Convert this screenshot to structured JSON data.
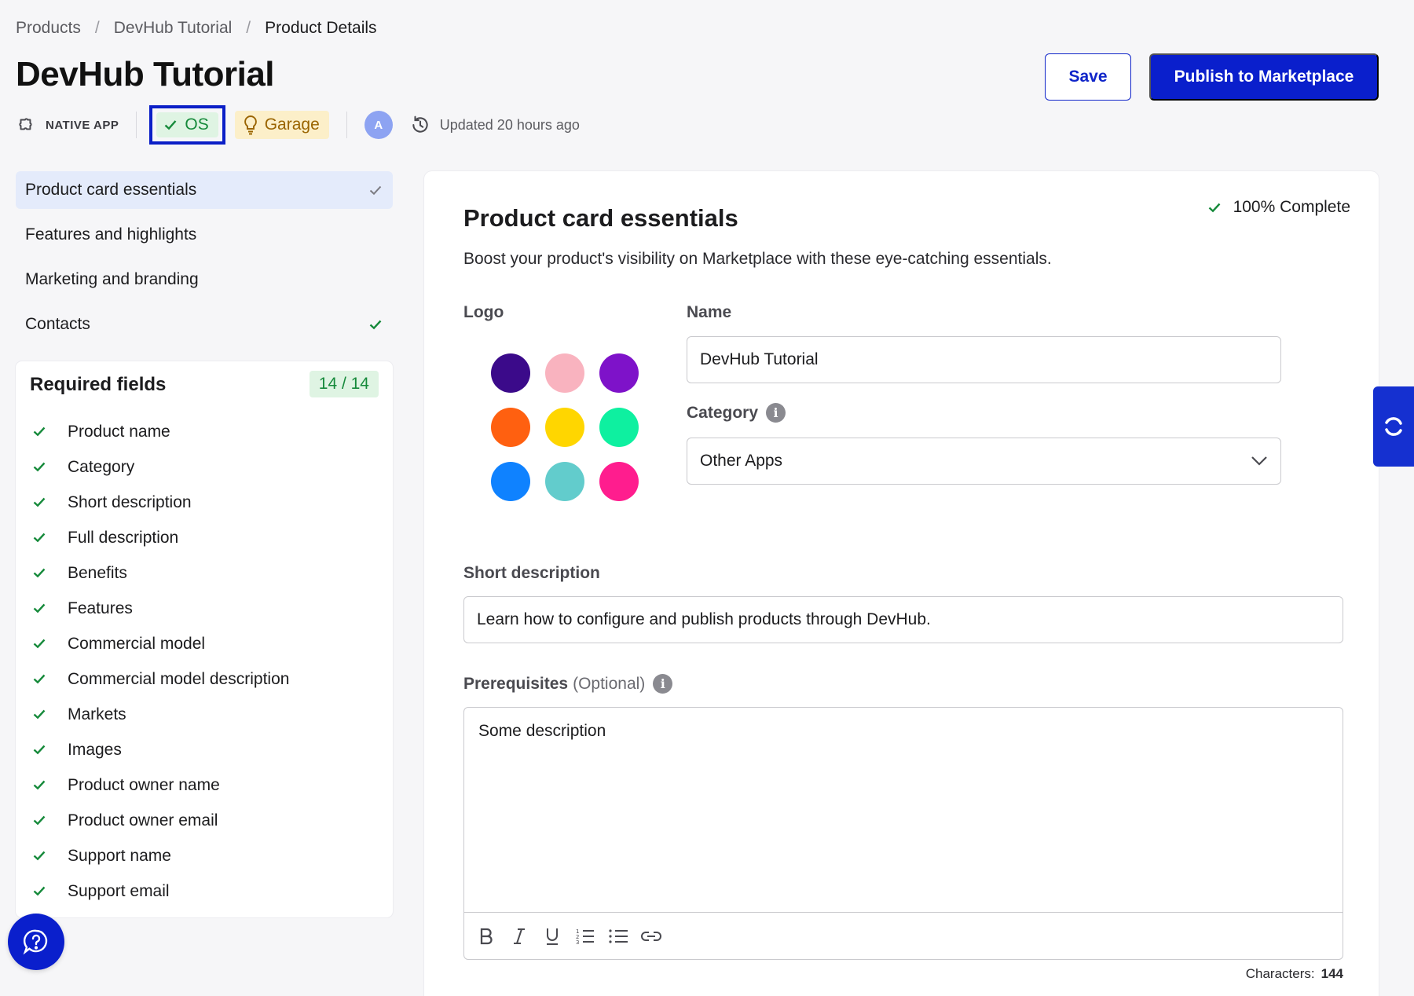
{
  "breadcrumb": [
    "Products",
    "DevHub Tutorial",
    "Product Details"
  ],
  "page_title": "DevHub Tutorial",
  "meta": {
    "type_label": "NATIVE APP",
    "os_badge": "OS",
    "garage_badge": "Garage",
    "avatar_initial": "A",
    "updated": "Updated 20 hours ago"
  },
  "actions": {
    "save": "Save",
    "publish": "Publish to Marketplace"
  },
  "nav": [
    {
      "label": "Product card essentials",
      "checked": true,
      "active": true
    },
    {
      "label": "Features and highlights",
      "checked": false,
      "active": false
    },
    {
      "label": "Marketing and branding",
      "checked": false,
      "active": false
    },
    {
      "label": "Contacts",
      "checked": true,
      "active": false
    }
  ],
  "required": {
    "title": "Required fields",
    "count": "14 / 14",
    "items": [
      "Product name",
      "Category",
      "Short description",
      "Full description",
      "Benefits",
      "Features",
      "Commercial model",
      "Commercial model description",
      "Markets",
      "Images",
      "Product owner name",
      "Product owner email",
      "Support name",
      "Support email"
    ]
  },
  "section": {
    "title": "Product card essentials",
    "description": "Boost your product's visibility on Marketplace with these eye-catching essentials.",
    "complete": "100%  Complete"
  },
  "logo": {
    "label": "Logo",
    "colors": [
      "#3b0a8a",
      "#f9b3bf",
      "#7e12c9",
      "#ff6010",
      "#ffd600",
      "#0ef0a0",
      "#0f82ff",
      "#62cccc",
      "#ff1d8e"
    ]
  },
  "fields": {
    "name_label": "Name",
    "name_value": "DevHub Tutorial",
    "category_label": "Category",
    "category_value": "Other Apps",
    "short_label": "Short description",
    "short_value": "Learn how to configure and publish products through DevHub.",
    "prereq_label": "Prerequisites",
    "prereq_optional": "(Optional)",
    "prereq_value": "Some description",
    "chars_label": "Characters:",
    "chars_value": "144"
  },
  "colors": {
    "accent": "#0a1fcc",
    "success": "#168a3b"
  }
}
